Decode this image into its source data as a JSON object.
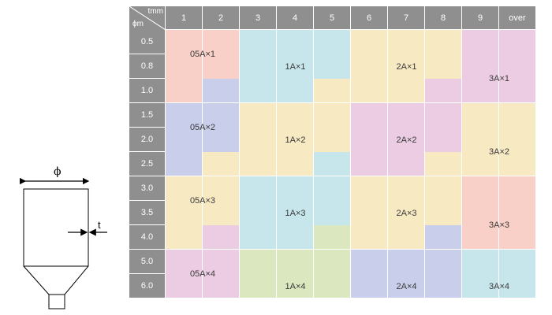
{
  "diagram": {
    "phi_symbol": "ϕ",
    "t_symbol": "t"
  },
  "table": {
    "corner": {
      "top": "tmm",
      "bottom": "ϕm"
    },
    "columns": [
      "1",
      "2",
      "3",
      "4",
      "5",
      "6",
      "7",
      "8",
      "9",
      "over"
    ],
    "rows": [
      "0.5",
      "0.8",
      "1.0",
      "1.5",
      "2.0",
      "2.5",
      "3.0",
      "3.5",
      "4.0",
      "5.0",
      "6.0"
    ],
    "colors": {
      "header": "#8f8f8f",
      "pink": "#f8d0c8",
      "blue": "#c9cfeb",
      "cyan": "#c7e6ec",
      "yellow": "#f7e9c2",
      "magenta": "#ebcce3",
      "green": "#dbe8bf"
    },
    "grid": [
      [
        "pink",
        "pink",
        "cyan",
        "cyan",
        "cyan",
        "yellow",
        "yellow",
        "yellow",
        "magenta",
        "magenta"
      ],
      [
        "pink",
        "pink",
        "cyan",
        "cyan",
        "cyan",
        "yellow",
        "yellow",
        "yellow",
        "magenta",
        "magenta"
      ],
      [
        "pink",
        "blue",
        "cyan",
        "cyan",
        "yellow",
        "yellow",
        "yellow",
        "magenta",
        "magenta",
        "magenta"
      ],
      [
        "blue",
        "blue",
        "yellow",
        "yellow",
        "yellow",
        "magenta",
        "magenta",
        "magenta",
        "yellow",
        "yellow"
      ],
      [
        "blue",
        "blue",
        "yellow",
        "yellow",
        "yellow",
        "magenta",
        "magenta",
        "magenta",
        "yellow",
        "yellow"
      ],
      [
        "blue",
        "yellow",
        "yellow",
        "yellow",
        "cyan",
        "magenta",
        "magenta",
        "yellow",
        "yellow",
        "yellow"
      ],
      [
        "yellow",
        "yellow",
        "cyan",
        "cyan",
        "cyan",
        "yellow",
        "yellow",
        "yellow",
        "pink",
        "pink"
      ],
      [
        "yellow",
        "yellow",
        "cyan",
        "cyan",
        "cyan",
        "yellow",
        "yellow",
        "yellow",
        "pink",
        "pink"
      ],
      [
        "yellow",
        "magenta",
        "cyan",
        "cyan",
        "green",
        "yellow",
        "yellow",
        "blue",
        "pink",
        "pink"
      ],
      [
        "magenta",
        "magenta",
        "green",
        "green",
        "green",
        "blue",
        "blue",
        "blue",
        "cyan",
        "cyan"
      ],
      [
        "magenta",
        "magenta",
        "green",
        "green",
        "green",
        "blue",
        "blue",
        "blue",
        "cyan",
        "cyan"
      ]
    ],
    "labels": [
      {
        "text": "05A×1",
        "col": 1.0,
        "row": 1.0
      },
      {
        "text": "1A×1",
        "col": 3.5,
        "row": 1.5
      },
      {
        "text": "2A×1",
        "col": 6.5,
        "row": 1.5
      },
      {
        "text": "3A×1",
        "col": 9.0,
        "row": 2.0
      },
      {
        "text": "05A×2",
        "col": 1.0,
        "row": 4.0
      },
      {
        "text": "1A×2",
        "col": 3.5,
        "row": 4.5
      },
      {
        "text": "2A×2",
        "col": 6.5,
        "row": 4.5
      },
      {
        "text": "3A×2",
        "col": 9.0,
        "row": 5.0
      },
      {
        "text": "05A×3",
        "col": 1.0,
        "row": 7.0
      },
      {
        "text": "1A×3",
        "col": 3.5,
        "row": 7.5
      },
      {
        "text": "2A×3",
        "col": 6.5,
        "row": 7.5
      },
      {
        "text": "3A×3",
        "col": 9.0,
        "row": 8.0
      },
      {
        "text": "05A×4",
        "col": 1.0,
        "row": 10.0
      },
      {
        "text": "1A×4",
        "col": 3.5,
        "row": 10.5
      },
      {
        "text": "2A×4",
        "col": 6.5,
        "row": 10.5
      },
      {
        "text": "3A×4",
        "col": 9.0,
        "row": 10.5
      }
    ]
  }
}
